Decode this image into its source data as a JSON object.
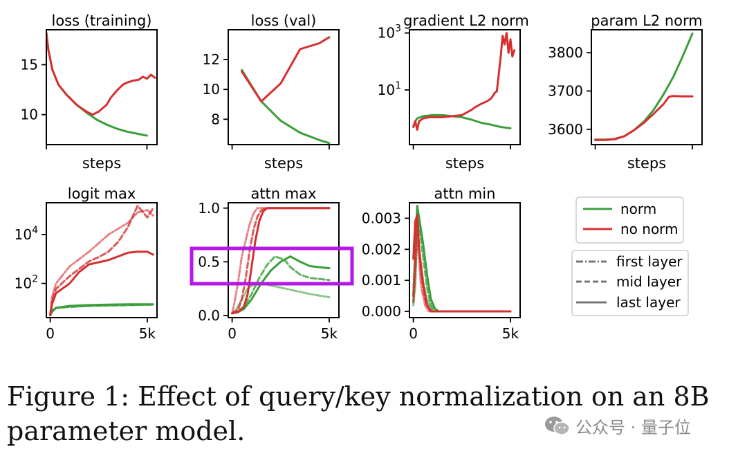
{
  "colors": {
    "norm": "#3a9e3a",
    "no_norm": "#d62f2f",
    "highlight": "#b517e6",
    "axis": "#000000"
  },
  "chart_data": [
    {
      "id": "loss_train",
      "type": "line",
      "title": "loss (training)",
      "xlabel": "steps",
      "ylabel": "",
      "xlim": [
        0,
        5500
      ],
      "ylim": [
        7,
        18.5
      ],
      "yscale": "linear",
      "xticks": [
        {
          "v": 0,
          "label": ""
        },
        {
          "v": 5000,
          "label": ""
        }
      ],
      "yticks": [
        {
          "v": 10,
          "label": "10"
        },
        {
          "v": 15,
          "label": "15"
        }
      ],
      "series": [
        {
          "name": "norm",
          "style": "last",
          "x": [
            0,
            100,
            300,
            600,
            1000,
            1500,
            2000,
            2500,
            3000,
            3500,
            4000,
            4500,
            5000
          ],
          "y": [
            18.2,
            16.5,
            14.5,
            13,
            12,
            11,
            10.2,
            9.5,
            9,
            8.6,
            8.3,
            8.1,
            7.9
          ]
        },
        {
          "name": "no norm",
          "style": "last",
          "x": [
            0,
            100,
            300,
            600,
            1000,
            1500,
            2000,
            2300,
            2600,
            3000,
            3200,
            3500,
            3800,
            4000,
            4300,
            4600,
            4800,
            5000,
            5200,
            5400
          ],
          "y": [
            18.2,
            16.5,
            14.5,
            13,
            12,
            11,
            10.3,
            10,
            10.3,
            11,
            11.7,
            12.4,
            13,
            13.2,
            13.4,
            13.5,
            13.8,
            13.6,
            14,
            13.7
          ]
        }
      ]
    },
    {
      "id": "loss_val",
      "type": "line",
      "title": "loss (val)",
      "xlabel": "steps",
      "ylabel": "",
      "xlim": [
        -200,
        5500
      ],
      "ylim": [
        6.3,
        14
      ],
      "yscale": "linear",
      "xticks": [
        {
          "v": 0,
          "label": ""
        },
        {
          "v": 5000,
          "label": ""
        }
      ],
      "yticks": [
        {
          "v": 8,
          "label": "8"
        },
        {
          "v": 10,
          "label": "10"
        },
        {
          "v": 12,
          "label": "12"
        }
      ],
      "series": [
        {
          "name": "norm",
          "style": "last",
          "x": [
            500,
            1500,
            2500,
            3500,
            4500,
            5000
          ],
          "y": [
            11.3,
            9.2,
            7.9,
            7.1,
            6.6,
            6.4
          ]
        },
        {
          "name": "no norm",
          "style": "last",
          "x": [
            500,
            1500,
            2500,
            3500,
            4500,
            5000
          ],
          "y": [
            11.2,
            9.2,
            10.4,
            12.7,
            13.1,
            13.5
          ]
        }
      ]
    },
    {
      "id": "grad_norm",
      "type": "line",
      "title": "gradient L2 norm",
      "xlabel": "steps",
      "ylabel": "",
      "xlim": [
        -200,
        5500
      ],
      "ylim": [
        0.12,
        1300
      ],
      "yscale": "log",
      "xticks": [
        {
          "v": 0,
          "label": ""
        },
        {
          "v": 5000,
          "label": ""
        }
      ],
      "yticks": [
        {
          "v": 10,
          "base": "10",
          "exp": "1"
        },
        {
          "v": 1000,
          "base": "10",
          "exp": "3"
        }
      ],
      "series": [
        {
          "name": "norm",
          "style": "last",
          "x": [
            0,
            100,
            200,
            500,
            1000,
            1500,
            2000,
            2500,
            3000,
            3500,
            4000,
            4500,
            5000
          ],
          "y": [
            0.5,
            0.8,
            1.0,
            1.2,
            1.3,
            1.3,
            1.2,
            1.1,
            0.9,
            0.7,
            0.6,
            0.5,
            0.45
          ]
        },
        {
          "name": "no norm",
          "style": "last",
          "x": [
            0,
            100,
            200,
            300,
            500,
            800,
            1000,
            1500,
            2000,
            2500,
            3000,
            3200,
            3400,
            3600,
            3800,
            4000,
            4200,
            4300,
            4400,
            4500,
            4600,
            4700,
            4800,
            4900,
            5000,
            5100,
            5200
          ],
          "y": [
            0.5,
            0.8,
            0.4,
            0.8,
            1.0,
            1.1,
            1.1,
            1.1,
            1.2,
            1.3,
            2,
            2.5,
            3,
            3.5,
            4,
            5,
            8,
            9,
            35,
            150,
            800,
            400,
            1000,
            200,
            600,
            150,
            250
          ]
        }
      ]
    },
    {
      "id": "param_norm",
      "type": "line",
      "title": "param L2 norm",
      "xlabel": "steps",
      "ylabel": "",
      "xlim": [
        -200,
        5500
      ],
      "ylim": [
        3560,
        3860
      ],
      "yscale": "linear",
      "xticks": [
        {
          "v": 0,
          "label": ""
        },
        {
          "v": 5000,
          "label": ""
        }
      ],
      "yticks": [
        {
          "v": 3600,
          "label": "3600"
        },
        {
          "v": 3700,
          "label": "3700"
        },
        {
          "v": 3800,
          "label": "3800"
        }
      ],
      "series": [
        {
          "name": "norm",
          "style": "last",
          "x": [
            0,
            500,
            1000,
            1500,
            2000,
            2500,
            3000,
            3500,
            4000,
            4500,
            5000
          ],
          "y": [
            3573,
            3573,
            3575,
            3582,
            3598,
            3620,
            3650,
            3690,
            3735,
            3790,
            3850
          ]
        },
        {
          "name": "no norm",
          "style": "last",
          "x": [
            0,
            500,
            1000,
            1500,
            2000,
            2500,
            3000,
            3500,
            3800,
            4000,
            4500,
            5000
          ],
          "y": [
            3572,
            3572,
            3574,
            3582,
            3598,
            3617,
            3640,
            3665,
            3685,
            3687,
            3686,
            3686
          ]
        }
      ]
    },
    {
      "id": "logit_max",
      "type": "line",
      "title": "logit max",
      "xlabel": "",
      "ylabel": "",
      "xlim": [
        -200,
        5500
      ],
      "ylim": [
        4,
        200000
      ],
      "yscale": "log",
      "xticks": [
        {
          "v": 0,
          "label": "0"
        },
        {
          "v": 5000,
          "label": "5k"
        }
      ],
      "yticks": [
        {
          "v": 100,
          "base": "10",
          "exp": "2"
        },
        {
          "v": 10000,
          "base": "10",
          "exp": "4"
        }
      ],
      "series": [
        {
          "name": "norm",
          "style": "first",
          "alpha": 0.6,
          "x": [
            0,
            100,
            300,
            1000,
            2000,
            3000,
            4000,
            5000,
            5300
          ],
          "y": [
            5,
            8,
            10,
            11,
            12,
            12.5,
            13,
            13.5,
            13.5
          ]
        },
        {
          "name": "norm",
          "style": "mid",
          "alpha": 0.8,
          "x": [
            0,
            100,
            300,
            1000,
            2000,
            3000,
            4000,
            5000,
            5300
          ],
          "y": [
            5,
            8,
            10,
            11,
            12,
            12.5,
            13,
            13.5,
            13.5
          ]
        },
        {
          "name": "norm",
          "style": "last",
          "alpha": 1,
          "x": [
            0,
            100,
            300,
            1000,
            2000,
            3000,
            4000,
            5000,
            5300
          ],
          "y": [
            5,
            7,
            10,
            12,
            13,
            13.5,
            14,
            14,
            14
          ]
        },
        {
          "name": "no norm",
          "style": "first",
          "alpha": 0.6,
          "x": [
            0,
            100,
            300,
            1000,
            2000,
            3000,
            4000,
            4500,
            5000,
            5300
          ],
          "y": [
            5,
            30,
            100,
            500,
            2000,
            10000,
            30000,
            80000,
            100000,
            60000
          ]
        },
        {
          "name": "no norm",
          "style": "mid",
          "alpha": 0.8,
          "x": [
            0,
            100,
            300,
            1000,
            2000,
            2500,
            3000,
            3500,
            4000,
            4500,
            5000,
            5300
          ],
          "y": [
            5,
            20,
            60,
            200,
            800,
            1200,
            2000,
            5000,
            20000,
            150000,
            50000,
            120000
          ]
        },
        {
          "name": "no norm",
          "style": "last",
          "alpha": 1,
          "x": [
            0,
            100,
            300,
            1000,
            1500,
            2000,
            3000,
            4000,
            4500,
            5000,
            5300
          ],
          "y": [
            5,
            15,
            40,
            100,
            300,
            600,
            900,
            1800,
            2000,
            2000,
            1500
          ]
        }
      ]
    },
    {
      "id": "attn_max",
      "type": "line",
      "title": "attn max",
      "xlabel": "",
      "ylabel": "",
      "xlim": [
        -200,
        5500
      ],
      "ylim": [
        -0.02,
        1.05
      ],
      "yscale": "linear",
      "xticks": [
        {
          "v": 0,
          "label": "0"
        },
        {
          "v": 5000,
          "label": "5k"
        }
      ],
      "yticks": [
        {
          "v": 0,
          "label": "0.0"
        },
        {
          "v": 0.5,
          "label": "0.5"
        },
        {
          "v": 1,
          "label": "1.0"
        }
      ],
      "series": [
        {
          "name": "norm",
          "style": "first",
          "alpha": 0.6,
          "x": [
            0,
            200,
            500,
            800,
            1200,
            1500,
            2000,
            3000,
            4000,
            5000
          ],
          "y": [
            0.02,
            0.05,
            0.15,
            0.25,
            0.3,
            0.3,
            0.28,
            0.24,
            0.2,
            0.17
          ]
        },
        {
          "name": "norm",
          "style": "mid",
          "alpha": 0.8,
          "x": [
            0,
            300,
            600,
            1000,
            1400,
            1800,
            2200,
            2700,
            3000,
            3500,
            4000,
            5000
          ],
          "y": [
            0.02,
            0.04,
            0.08,
            0.2,
            0.35,
            0.47,
            0.55,
            0.52,
            0.45,
            0.38,
            0.35,
            0.33
          ]
        },
        {
          "name": "norm",
          "style": "last",
          "alpha": 1,
          "x": [
            0,
            300,
            600,
            1000,
            1500,
            2000,
            2500,
            3000,
            3500,
            4000,
            4500,
            5000
          ],
          "y": [
            0.02,
            0.03,
            0.06,
            0.15,
            0.3,
            0.42,
            0.5,
            0.55,
            0.5,
            0.46,
            0.45,
            0.44
          ]
        },
        {
          "name": "no norm",
          "style": "first",
          "alpha": 0.6,
          "x": [
            0,
            100,
            300,
            500,
            700,
            900,
            1100,
            1300,
            1500,
            2000,
            5000
          ],
          "y": [
            0.02,
            0.1,
            0.3,
            0.55,
            0.7,
            0.85,
            0.95,
            1,
            1,
            1,
            1
          ]
        },
        {
          "name": "no norm",
          "style": "mid",
          "alpha": 0.8,
          "x": [
            0,
            300,
            500,
            700,
            900,
            1100,
            1300,
            1500,
            1800,
            2200,
            5000
          ],
          "y": [
            0.02,
            0.05,
            0.15,
            0.35,
            0.6,
            0.8,
            0.92,
            0.98,
            1,
            1,
            1
          ]
        },
        {
          "name": "no norm",
          "style": "last",
          "alpha": 1,
          "x": [
            0,
            300,
            600,
            800,
            1000,
            1200,
            1400,
            1600,
            1800,
            2000,
            5000
          ],
          "y": [
            0.02,
            0.03,
            0.08,
            0.2,
            0.45,
            0.7,
            0.88,
            0.97,
            1,
            1,
            1
          ]
        }
      ]
    },
    {
      "id": "attn_min",
      "type": "line",
      "title": "attn min",
      "xlabel": "",
      "ylabel": "",
      "xlim": [
        -200,
        5500
      ],
      "ylim": [
        -0.0002,
        0.0035
      ],
      "yscale": "linear",
      "xticks": [
        {
          "v": 0,
          "label": "0"
        },
        {
          "v": 5000,
          "label": "5k"
        }
      ],
      "yticks": [
        {
          "v": 0,
          "label": "0.000"
        },
        {
          "v": 0.001,
          "label": "0.001"
        },
        {
          "v": 0.002,
          "label": "0.002"
        },
        {
          "v": 0.003,
          "label": "0.003"
        }
      ],
      "series": [
        {
          "name": "norm",
          "style": "first",
          "alpha": 0.6,
          "x": [
            0,
            100,
            200,
            300,
            500,
            700,
            900,
            1100,
            5000
          ],
          "y": [
            0.0002,
            0.0008,
            0.0025,
            0.002,
            0.001,
            0.0004,
            0.0001,
            0,
            0
          ]
        },
        {
          "name": "norm",
          "style": "mid",
          "alpha": 0.8,
          "x": [
            0,
            100,
            200,
            300,
            500,
            700,
            900,
            1100,
            5000
          ],
          "y": [
            0.0003,
            0.0015,
            0.0032,
            0.0028,
            0.0018,
            0.0008,
            0.0002,
            0,
            0
          ]
        },
        {
          "name": "norm",
          "style": "last",
          "alpha": 1,
          "x": [
            0,
            100,
            200,
            300,
            500,
            700,
            900,
            1100,
            1300,
            5000
          ],
          "y": [
            0.0005,
            0.002,
            0.0034,
            0.003,
            0.0022,
            0.0012,
            0.0004,
            0.0001,
            0,
            0
          ]
        },
        {
          "name": "no norm",
          "style": "first",
          "alpha": 0.6,
          "x": [
            0,
            100,
            200,
            400,
            600,
            800,
            1000,
            5000
          ],
          "y": [
            0.0003,
            0.0012,
            0.0025,
            0.0008,
            0.0002,
            0,
            0,
            0
          ]
        },
        {
          "name": "no norm",
          "style": "mid",
          "alpha": 0.8,
          "x": [
            0,
            100,
            200,
            400,
            600,
            800,
            1000,
            5000
          ],
          "y": [
            0.0005,
            0.0018,
            0.003,
            0.0012,
            0.0004,
            0.0001,
            0,
            0
          ]
        },
        {
          "name": "no norm",
          "style": "last",
          "alpha": 1,
          "x": [
            0,
            100,
            200,
            300,
            500,
            700,
            900,
            5000
          ],
          "y": [
            0.0017,
            0.0029,
            0.0031,
            0.002,
            0.0009,
            0.0002,
            0,
            0
          ]
        }
      ]
    }
  ],
  "legend": {
    "colors_box": [
      {
        "label": "norm",
        "color": "#3a9e3a"
      },
      {
        "label": "no norm",
        "color": "#d62f2f"
      }
    ],
    "styles_box": [
      {
        "label": "first layer",
        "style": "first"
      },
      {
        "label": "mid layer",
        "style": "mid"
      },
      {
        "label": "last layer",
        "style": "last"
      }
    ]
  },
  "caption": "Figure 1: Effect of query/key normalization on an 8B parameter model.",
  "watermark": "公众号 · 量子位"
}
